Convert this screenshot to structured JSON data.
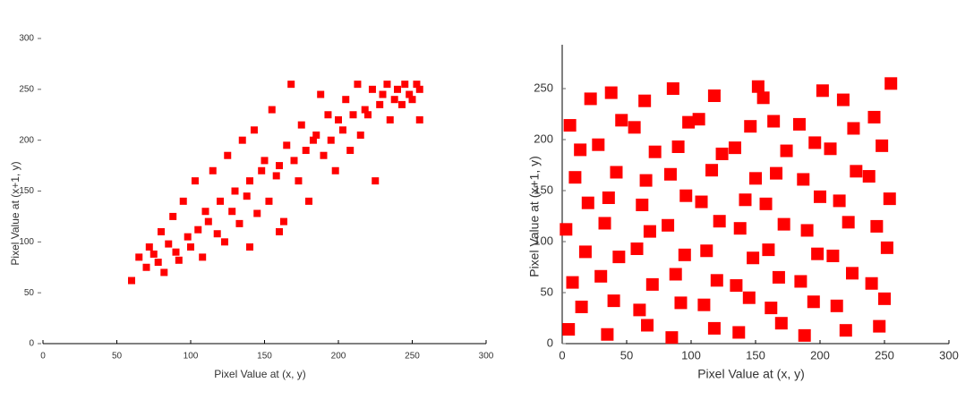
{
  "chart_data": [
    {
      "type": "scatter",
      "xlabel": "Pixel Value at (x, y)",
      "ylabel": "Pixel Value at (x+1, y)",
      "xlim": [
        0,
        300
      ],
      "ylim": [
        0,
        300
      ],
      "xticks": [
        0,
        50,
        100,
        150,
        200,
        250,
        300
      ],
      "yticks": [
        0,
        50,
        100,
        150,
        200,
        250,
        300
      ],
      "color": "#ff0000",
      "x": [
        60,
        65,
        70,
        72,
        75,
        78,
        80,
        82,
        85,
        88,
        90,
        92,
        95,
        98,
        100,
        103,
        105,
        108,
        110,
        112,
        115,
        118,
        120,
        123,
        125,
        128,
        130,
        133,
        135,
        138,
        140,
        143,
        145,
        148,
        150,
        153,
        155,
        158,
        160,
        163,
        165,
        168,
        170,
        173,
        175,
        178,
        180,
        183,
        185,
        188,
        190,
        193,
        195,
        198,
        200,
        203,
        205,
        208,
        210,
        213,
        215,
        218,
        220,
        223,
        225,
        228,
        230,
        233,
        235,
        238,
        240,
        243,
        245,
        248,
        250,
        253,
        255,
        255,
        140,
        160
      ],
      "y": [
        62,
        85,
        75,
        95,
        88,
        80,
        110,
        70,
        98,
        125,
        90,
        82,
        140,
        105,
        95,
        160,
        112,
        85,
        130,
        120,
        170,
        108,
        140,
        100,
        185,
        130,
        150,
        118,
        200,
        145,
        160,
        210,
        128,
        170,
        180,
        140,
        230,
        165,
        175,
        120,
        195,
        255,
        180,
        160,
        215,
        190,
        140,
        200,
        205,
        245,
        185,
        225,
        200,
        170,
        220,
        210,
        240,
        190,
        225,
        255,
        205,
        230,
        225,
        250,
        160,
        235,
        245,
        255,
        220,
        240,
        250,
        235,
        255,
        245,
        240,
        255,
        250,
        220,
        95,
        110
      ]
    },
    {
      "type": "scatter",
      "xlabel": "Pixel Value at (x, y)",
      "ylabel": "Pixel Value at (x+1, y)",
      "xlim": [
        0,
        300
      ],
      "ylim": [
        0,
        293
      ],
      "xticks": [
        0,
        50,
        100,
        150,
        200,
        250,
        300
      ],
      "yticks": [
        0,
        50,
        100,
        150,
        200,
        250
      ],
      "color": "#ff0000",
      "x": [
        5,
        35,
        66,
        85,
        118,
        137,
        170,
        188,
        220,
        246,
        15,
        40,
        60,
        92,
        110,
        145,
        162,
        195,
        213,
        250,
        8,
        30,
        70,
        88,
        120,
        135,
        168,
        185,
        225,
        240,
        18,
        44,
        58,
        95,
        112,
        148,
        160,
        198,
        210,
        252,
        3,
        33,
        68,
        82,
        122,
        138,
        172,
        190,
        222,
        244,
        20,
        36,
        62,
        96,
        108,
        142,
        158,
        200,
        215,
        254,
        10,
        42,
        65,
        84,
        116,
        150,
        166,
        187,
        228,
        238,
        14,
        28,
        72,
        90,
        124,
        134,
        174,
        196,
        208,
        248,
        6,
        46,
        56,
        98,
        106,
        146,
        164,
        184,
        226,
        242,
        22,
        38,
        64,
        86,
        118,
        152,
        156,
        202,
        218,
        255
      ],
      "y": [
        14,
        9,
        18,
        6,
        15,
        11,
        20,
        8,
        13,
        17,
        36,
        42,
        33,
        40,
        38,
        45,
        35,
        41,
        37,
        44,
        60,
        66,
        58,
        68,
        62,
        57,
        65,
        61,
        69,
        59,
        90,
        85,
        93,
        87,
        91,
        84,
        92,
        88,
        86,
        94,
        112,
        118,
        110,
        116,
        120,
        113,
        117,
        111,
        119,
        115,
        138,
        143,
        136,
        145,
        139,
        141,
        137,
        144,
        140,
        142,
        163,
        168,
        160,
        166,
        170,
        162,
        167,
        161,
        169,
        164,
        190,
        195,
        188,
        193,
        186,
        192,
        189,
        197,
        191,
        194,
        214,
        219,
        212,
        217,
        220,
        213,
        218,
        215,
        211,
        222,
        240,
        246,
        238,
        250,
        243,
        252,
        241,
        248,
        239,
        255
      ]
    }
  ]
}
